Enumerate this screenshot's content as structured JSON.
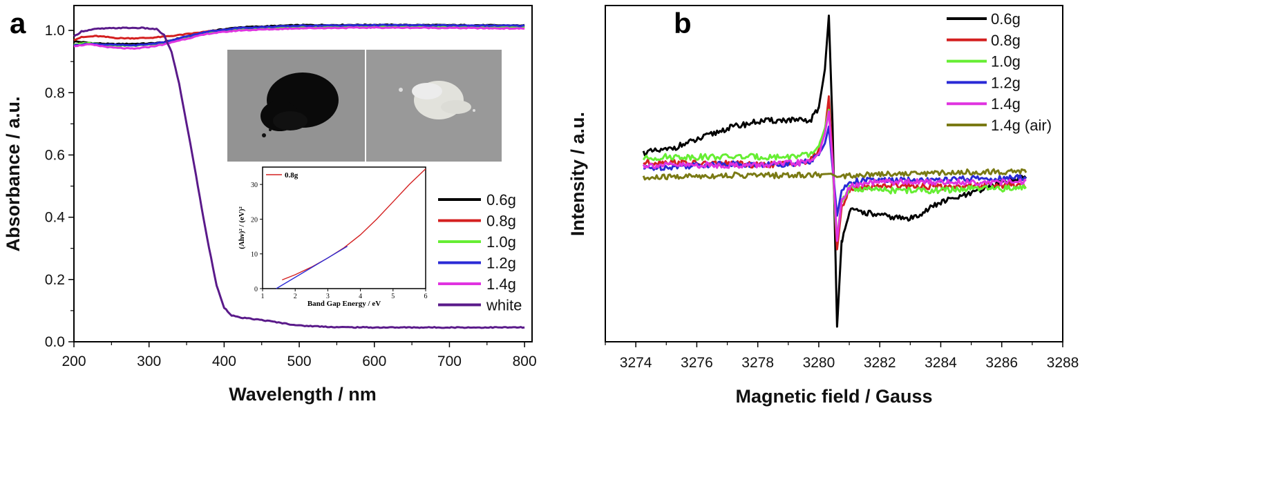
{
  "panels": {
    "a": "a",
    "b": "b"
  },
  "chart_data": [
    {
      "type": "line",
      "panel": "a",
      "xlabel": "Wavelength / nm",
      "ylabel": "Absorbance / a.u.",
      "xlim": [
        200,
        810
      ],
      "ylim": [
        0.0,
        1.08
      ],
      "xticks": [
        200,
        300,
        400,
        500,
        600,
        700,
        800
      ],
      "yticks": [
        0.0,
        0.2,
        0.4,
        0.6,
        0.8,
        1.0
      ],
      "tick_labels_x": [
        "200",
        "300",
        "400",
        "500",
        "600",
        "700",
        "800"
      ],
      "tick_labels_y": [
        "0.0",
        "0.2",
        "0.4",
        "0.6",
        "0.8",
        "1.0"
      ],
      "legend_position": "right",
      "series": [
        {
          "name": "0.6g",
          "color": "#000000",
          "x": [
            200,
            220,
            250,
            280,
            300,
            320,
            340,
            380,
            420,
            500,
            600,
            700,
            800
          ],
          "y": [
            0.965,
            0.96,
            0.956,
            0.957,
            0.958,
            0.962,
            0.975,
            0.998,
            1.01,
            1.017,
            1.018,
            1.017,
            1.016
          ]
        },
        {
          "name": "0.8g",
          "color": "#d42020",
          "x": [
            200,
            210,
            230,
            260,
            280,
            300,
            320,
            340,
            380,
            420,
            500,
            600,
            700,
            800
          ],
          "y": [
            0.97,
            0.978,
            0.982,
            0.975,
            0.975,
            0.976,
            0.98,
            0.985,
            0.997,
            1.005,
            1.011,
            1.012,
            1.011,
            1.01
          ]
        },
        {
          "name": "1.0g",
          "color": "#66ee33",
          "x": [
            200,
            220,
            250,
            280,
            300,
            320,
            340,
            380,
            420,
            500,
            600,
            700,
            800
          ],
          "y": [
            0.955,
            0.96,
            0.952,
            0.951,
            0.955,
            0.96,
            0.972,
            0.993,
            1.003,
            1.01,
            1.012,
            1.011,
            1.01
          ]
        },
        {
          "name": "1.2g",
          "color": "#2a2ad6",
          "x": [
            200,
            220,
            250,
            280,
            300,
            320,
            340,
            380,
            420,
            500,
            600,
            700,
            800
          ],
          "y": [
            0.952,
            0.957,
            0.954,
            0.952,
            0.956,
            0.962,
            0.975,
            0.997,
            1.008,
            1.015,
            1.017,
            1.016,
            1.015
          ]
        },
        {
          "name": "1.4g",
          "color": "#e033e0",
          "x": [
            200,
            220,
            250,
            280,
            300,
            320,
            340,
            380,
            420,
            500,
            600,
            700,
            800
          ],
          "y": [
            0.95,
            0.955,
            0.945,
            0.941,
            0.947,
            0.955,
            0.968,
            0.99,
            1.0,
            1.007,
            1.009,
            1.008,
            1.006
          ]
        },
        {
          "name": "white",
          "color": "#5a1a8a",
          "x": [
            200,
            210,
            230,
            260,
            290,
            310,
            320,
            330,
            340,
            350,
            360,
            370,
            380,
            390,
            400,
            410,
            420,
            450,
            500,
            550,
            600,
            700,
            800
          ],
          "y": [
            0.98,
            0.997,
            1.005,
            1.008,
            1.008,
            1.004,
            0.985,
            0.93,
            0.83,
            0.7,
            0.57,
            0.43,
            0.3,
            0.18,
            0.11,
            0.085,
            0.078,
            0.07,
            0.052,
            0.047,
            0.046,
            0.046,
            0.046
          ]
        }
      ],
      "inset": {
        "type": "line",
        "xlabel": "Band Gap Energy / eV",
        "ylabel": "(Ahν)² / (eV)²",
        "xlim": [
          1,
          6
        ],
        "ylim": [
          0,
          35
        ],
        "xticks": [
          1,
          2,
          3,
          4,
          5,
          6
        ],
        "yticks": [
          0,
          10,
          20,
          30
        ],
        "tick_labels_x": [
          "1",
          "2",
          "3",
          "4",
          "5",
          "6"
        ],
        "tick_labels_y": [
          "0",
          "10",
          "20",
          "30"
        ],
        "series": [
          {
            "name": "0.8g",
            "color": "#d42020",
            "x": [
              1.6,
              2.0,
              2.5,
              3.0,
              3.5,
              4.0,
              4.5,
              5.0,
              5.5,
              6.0
            ],
            "y": [
              2.5,
              4.0,
              6.2,
              8.8,
              11.8,
              15.5,
              20.0,
              25.0,
              30.0,
              34.5
            ]
          },
          {
            "name": "",
            "color": "#2a2ad6",
            "x": [
              1.42,
              3.6
            ],
            "y": [
              0,
              12.2
            ]
          }
        ]
      }
    },
    {
      "type": "line",
      "panel": "b",
      "xlabel": "Magnetic field / Gauss",
      "ylabel": "Intensity / a.u.",
      "xlim": [
        3273,
        3288
      ],
      "ylim": [
        -1.0,
        1.0
      ],
      "xticks": [
        3274,
        3276,
        3278,
        3280,
        3282,
        3284,
        3286,
        3288
      ],
      "tick_labels_x": [
        "3274",
        "3276",
        "3278",
        "3280",
        "3282",
        "3284",
        "3286",
        "3288"
      ],
      "legend_position": "top-right",
      "series": [
        {
          "name": "0.6g",
          "color": "#000000",
          "x": [
            3274.25,
            3275.0,
            3276.0,
            3277.0,
            3278.0,
            3279.0,
            3279.7,
            3280.0,
            3280.2,
            3280.33,
            3280.45,
            3280.55,
            3280.6,
            3280.75,
            3281.0,
            3281.5,
            3282.0,
            3283.0,
            3284.0,
            3285.0,
            3286.0,
            3286.8
          ],
          "y": [
            0.125,
            0.14,
            0.2,
            0.27,
            0.31,
            0.32,
            0.31,
            0.39,
            0.62,
            0.94,
            0.3,
            -0.5,
            -0.91,
            -0.4,
            -0.22,
            -0.23,
            -0.25,
            -0.27,
            -0.17,
            -0.12,
            -0.05,
            -0.02
          ]
        },
        {
          "name": "0.8g",
          "color": "#d42020",
          "x": [
            3274.25,
            3275.0,
            3276.0,
            3277.0,
            3278.0,
            3279.0,
            3279.7,
            3280.0,
            3280.2,
            3280.33,
            3280.45,
            3280.55,
            3280.6,
            3280.75,
            3281.0,
            3281.5,
            3282.0,
            3283.0,
            3284.0,
            3285.0,
            3286.0,
            3286.8
          ],
          "y": [
            0.065,
            0.07,
            0.06,
            0.06,
            0.05,
            0.06,
            0.07,
            0.14,
            0.25,
            0.46,
            0.1,
            -0.3,
            -0.45,
            -0.2,
            -0.1,
            -0.08,
            -0.07,
            -0.07,
            -0.08,
            -0.07,
            -0.07,
            -0.07
          ]
        },
        {
          "name": "1.0g",
          "color": "#66ee33",
          "x": [
            3274.25,
            3275.0,
            3276.0,
            3277.0,
            3278.0,
            3279.0,
            3279.7,
            3280.0,
            3280.2,
            3280.33,
            3280.45,
            3280.55,
            3280.6,
            3280.75,
            3281.0,
            3281.5,
            3282.0,
            3283.0,
            3284.0,
            3285.0,
            3286.0,
            3286.8
          ],
          "y": [
            0.09,
            0.1,
            0.1,
            0.1,
            0.1,
            0.1,
            0.11,
            0.16,
            0.27,
            0.38,
            0.05,
            -0.28,
            -0.38,
            -0.16,
            -0.09,
            -0.09,
            -0.1,
            -0.1,
            -0.1,
            -0.09,
            -0.09,
            -0.08
          ]
        },
        {
          "name": "1.2g",
          "color": "#2a2ad6",
          "x": [
            3274.25,
            3275.0,
            3276.0,
            3277.0,
            3278.0,
            3279.0,
            3279.7,
            3280.0,
            3280.2,
            3280.33,
            3280.45,
            3280.55,
            3280.6,
            3280.75,
            3281.0,
            3281.5,
            3282.0,
            3283.0,
            3284.0,
            3285.0,
            3286.0,
            3286.8
          ],
          "y": [
            0.03,
            0.04,
            0.05,
            0.06,
            0.05,
            0.06,
            0.07,
            0.11,
            0.18,
            0.28,
            0.04,
            -0.15,
            -0.25,
            -0.1,
            -0.05,
            -0.04,
            -0.04,
            -0.04,
            -0.04,
            -0.03,
            -0.03,
            -0.02
          ]
        },
        {
          "name": "1.4g",
          "color": "#e033e0",
          "x": [
            3274.25,
            3275.0,
            3276.0,
            3277.0,
            3278.0,
            3279.0,
            3279.7,
            3280.0,
            3280.2,
            3280.33,
            3280.45,
            3280.55,
            3280.6,
            3280.75,
            3281.0,
            3281.5,
            3282.0,
            3283.0,
            3284.0,
            3285.0,
            3286.0,
            3286.8
          ],
          "y": [
            0.05,
            0.05,
            0.05,
            0.05,
            0.05,
            0.06,
            0.07,
            0.12,
            0.24,
            0.37,
            0.08,
            -0.24,
            -0.4,
            -0.16,
            -0.08,
            -0.06,
            -0.05,
            -0.05,
            -0.05,
            -0.05,
            -0.05,
            -0.05
          ]
        },
        {
          "name": "1.4g (air)",
          "color": "#7a7a14",
          "x": [
            3274.25,
            3275.0,
            3276.0,
            3277.0,
            3278.0,
            3279.0,
            3280.0,
            3280.4,
            3280.6,
            3281.0,
            3282.0,
            3283.0,
            3284.0,
            3285.0,
            3286.0,
            3286.8
          ],
          "y": [
            -0.03,
            -0.02,
            -0.015,
            -0.01,
            -0.01,
            -0.01,
            -0.005,
            0.0,
            -0.02,
            -0.01,
            0.0,
            0.0,
            0.005,
            0.01,
            0.01,
            0.015
          ]
        }
      ]
    }
  ]
}
